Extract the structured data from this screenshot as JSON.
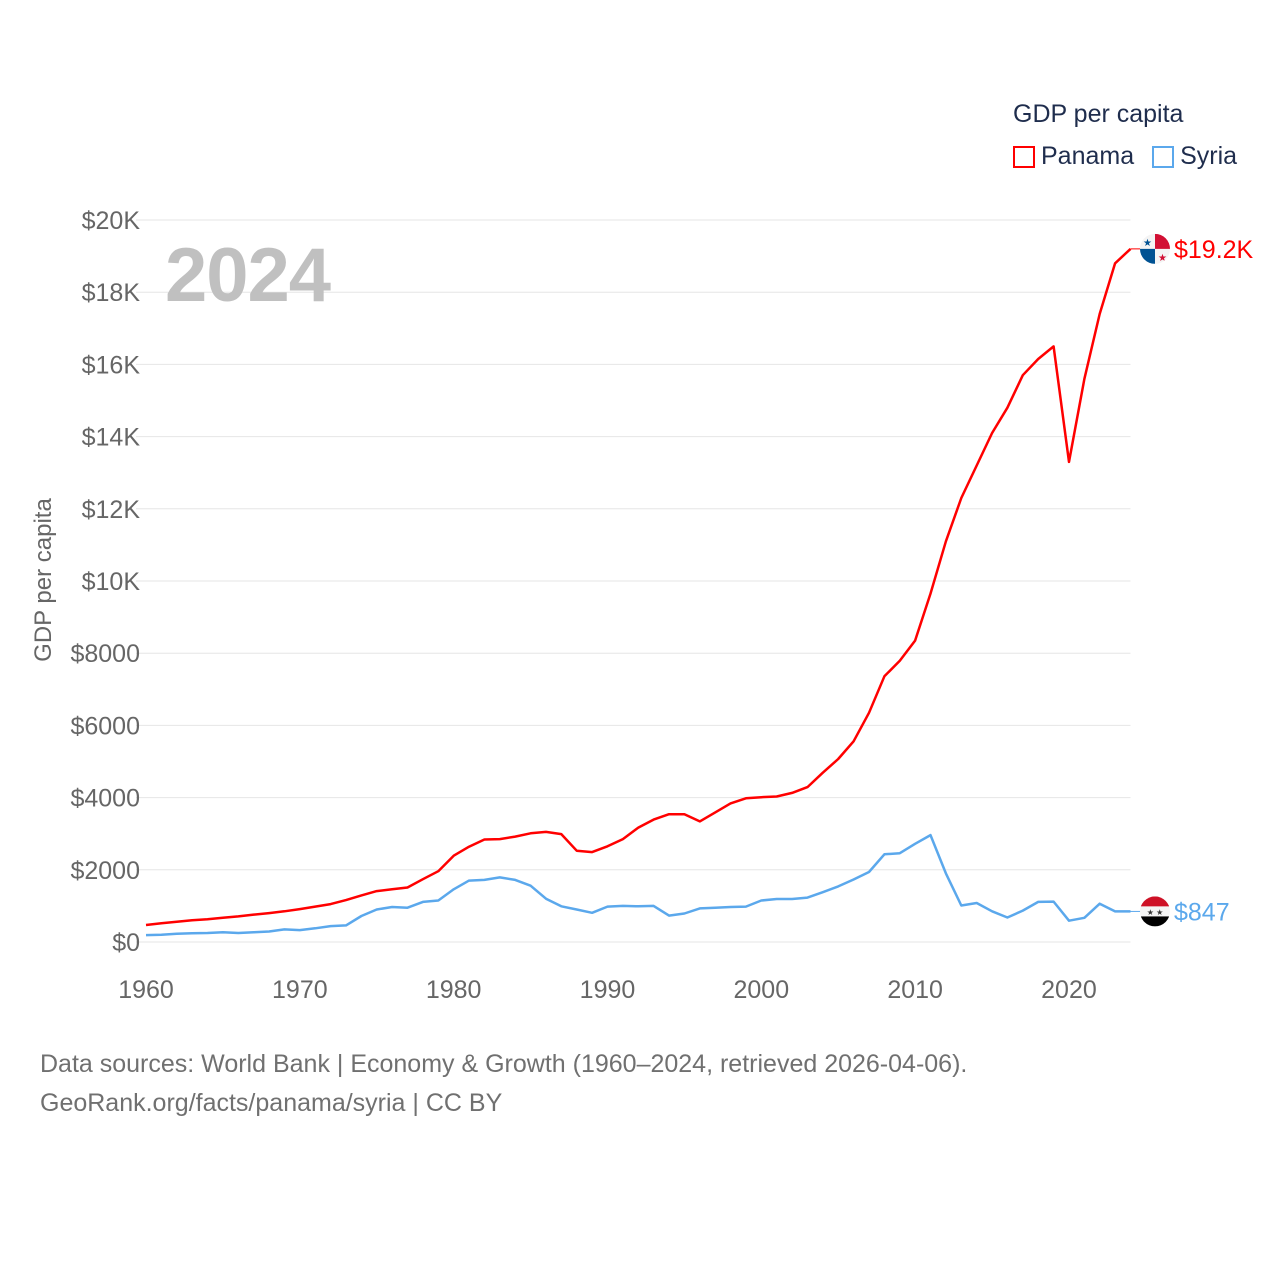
{
  "chart_data": {
    "type": "line",
    "title": "GDP per capita",
    "ylabel": "GDP per capita",
    "xlabel": "",
    "year_label": "2024",
    "xlim": [
      1960,
      2024
    ],
    "ylim": [
      0,
      20000
    ],
    "grid": true,
    "legend_position": "top-right",
    "x_ticks": [
      1960,
      1970,
      1980,
      1990,
      2000,
      2010,
      2020
    ],
    "x_tick_labels": [
      "1960",
      "1970",
      "1980",
      "1990",
      "2000",
      "2010",
      "2020"
    ],
    "y_ticks": [
      0,
      2000,
      4000,
      6000,
      8000,
      10000,
      12000,
      14000,
      16000,
      18000,
      20000
    ],
    "y_tick_labels": [
      "$0",
      "$2000",
      "$4000",
      "$6000",
      "$8000",
      "$10K",
      "$12K",
      "$14K",
      "$16K",
      "$18K",
      "$20K"
    ],
    "x_start": 1960,
    "series": [
      {
        "name": "Panama",
        "color": "#ff0000",
        "end_label": "$19.2K",
        "flag": "panama-flag",
        "values": [
          470,
          520,
          560,
          600,
          630,
          670,
          710,
          760,
          800,
          850,
          910,
          980,
          1050,
          1160,
          1290,
          1410,
          1460,
          1510,
          1740,
          1960,
          2390,
          2640,
          2840,
          2850,
          2920,
          3010,
          3050,
          2990,
          2530,
          2490,
          2650,
          2850,
          3170,
          3390,
          3540,
          3540,
          3340,
          3590,
          3840,
          3980,
          4010,
          4030,
          4130,
          4290,
          4690,
          5070,
          5560,
          6350,
          7360,
          7790,
          8350,
          9650,
          11100,
          12300,
          13200,
          14100,
          14800,
          15700,
          16150,
          16500,
          13300,
          15600,
          17400,
          18800,
          19200
        ]
      },
      {
        "name": "Syria",
        "color": "#5ba8ec",
        "end_label": "$847",
        "flag": "syria-flag",
        "values": [
          190,
          200,
          230,
          240,
          250,
          270,
          250,
          270,
          290,
          350,
          330,
          380,
          440,
          460,
          720,
          900,
          970,
          950,
          1110,
          1150,
          1460,
          1700,
          1720,
          1790,
          1720,
          1560,
          1200,
          990,
          900,
          810,
          980,
          1000,
          990,
          1000,
          730,
          790,
          930,
          950,
          970,
          980,
          1150,
          1190,
          1190,
          1230,
          1380,
          1540,
          1730,
          1940,
          2430,
          2460,
          2720,
          2960,
          1900,
          1010,
          1080,
          850,
          680,
          870,
          1110,
          1120,
          590,
          670,
          1060,
          847,
          847
        ]
      }
    ]
  },
  "source": {
    "line1": "Data sources: World Bank | Economy & Growth (1960–2024, retrieved 2026-04-06).",
    "line2": "GeoRank.org/facts/panama/syria | CC BY"
  }
}
